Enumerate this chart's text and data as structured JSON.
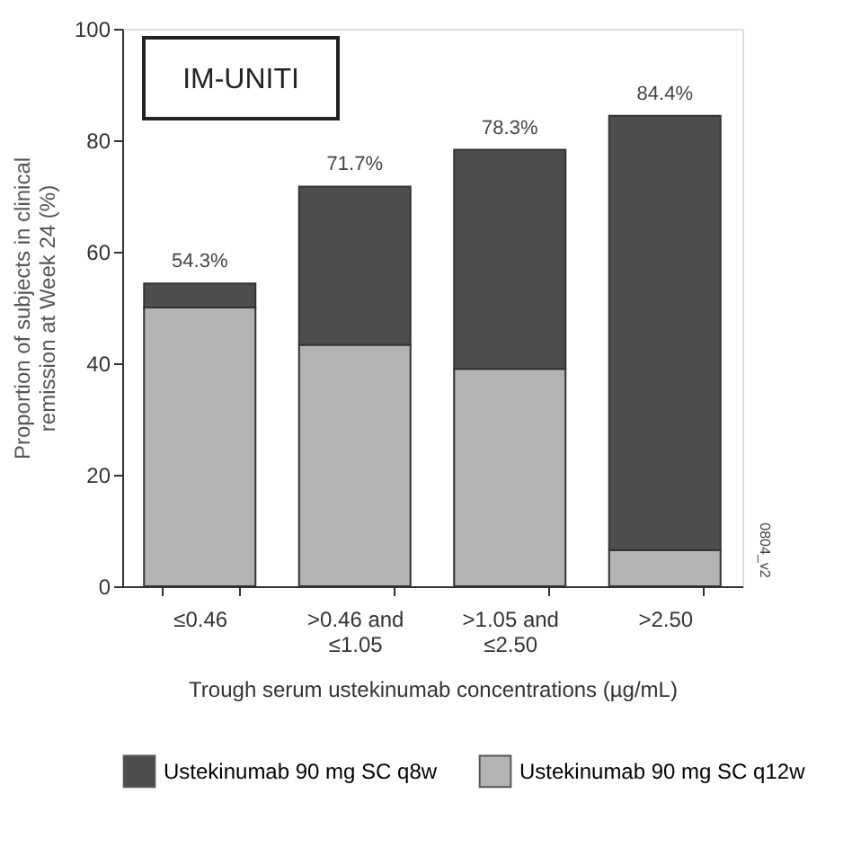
{
  "chart_data": {
    "type": "bar",
    "stacked": true,
    "categories": [
      "≤0.46",
      ">0.46 and\n≤1.05",
      ">1.05 and\n≤2.50",
      ">2.50"
    ],
    "series": [
      {
        "name": "Ustekinumab 90 mg SC q12w",
        "color": "#b3b3b3",
        "values": [
          50,
          43.3,
          39,
          6.5
        ]
      },
      {
        "name": "Ustekinumab 90 mg SC q8w",
        "color": "#4d4d4d",
        "values": [
          4.3,
          28.4,
          39.3,
          77.9
        ]
      }
    ],
    "totals": [
      "54.3%",
      "71.7%",
      "78.3%",
      "84.4%"
    ],
    "xlabel": "Trough serum ustekinumab concentrations (µg/mL)",
    "ylabel": "Proportion of subjects in clinical\nremission at Week 24 (%)",
    "ylim": [
      0,
      100
    ],
    "yticks": [
      0,
      20,
      40,
      60,
      80,
      100
    ],
    "annotations": [
      "IM-UNITI",
      "0804_v2"
    ],
    "grid": false,
    "legend": "bottom"
  }
}
